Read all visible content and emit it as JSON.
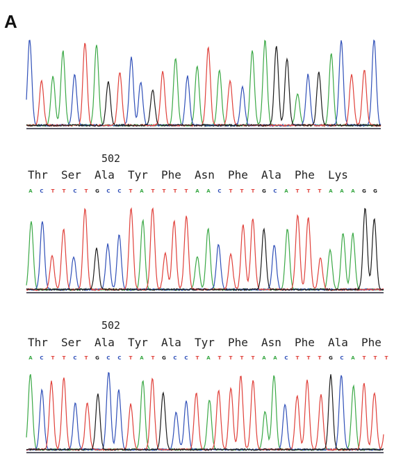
{
  "panel_label": "A",
  "base_colors": {
    "A": "#3aa845",
    "C": "#2f4fb8",
    "T": "#e0403a",
    "G": "#1a1a1a"
  },
  "sections": [
    {
      "position": "502",
      "amino_acids": [
        "Thr",
        "Ser",
        "Ala",
        "Tyr",
        "Phe",
        "Asn",
        "Phe",
        "Ala",
        "Phe",
        "Lys"
      ],
      "bases": [
        "A",
        "C",
        "T",
        "T",
        "C",
        "T",
        "G",
        "C",
        "C",
        "T",
        "A",
        "T",
        "T",
        "T",
        "T",
        "A",
        "A",
        "C",
        "T",
        "T",
        "T",
        "G",
        "C",
        "A",
        "T",
        "T",
        "T",
        "A",
        "A",
        "A",
        "G",
        "G"
      ]
    },
    {
      "position": "502",
      "amino_acids": [
        "Thr",
        "Ser",
        "Ala",
        "Tyr",
        "Ala",
        "Tyr",
        "Phe",
        "Asn",
        "Phe",
        "Ala",
        "Phe"
      ],
      "bases": [
        "A",
        "C",
        "T",
        "T",
        "C",
        "T",
        "G",
        "C",
        "C",
        "T",
        "A",
        "T",
        "G",
        "C",
        "C",
        "T",
        "A",
        "T",
        "T",
        "T",
        "T",
        "A",
        "A",
        "C",
        "T",
        "T",
        "T",
        "G",
        "C",
        "A",
        "T",
        "T",
        "T"
      ]
    }
  ]
}
